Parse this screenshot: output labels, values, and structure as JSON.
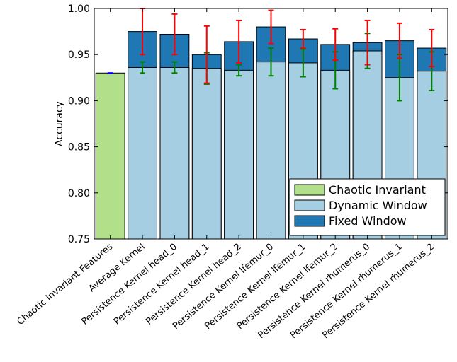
{
  "chart_data": {
    "type": "bar",
    "ylabel": "Accuracy",
    "ylim": [
      0.75,
      1.0
    ],
    "yticks": [
      "0.75",
      "0.80",
      "0.85",
      "0.90",
      "0.95",
      "1.00"
    ],
    "categories": [
      "Chaotic Invariant Features",
      "Average Kernel",
      "Persistence Kernel head_0",
      "Persistence Kernel head_1",
      "Persistence Kernel head_2",
      "Persistence Kernel lfemur_0",
      "Persistence Kernel lfemur_1",
      "Persistence Kernel lfemur_2",
      "Persistence Kernel rhumerus_0",
      "Persistence Kernel rhumerus_1",
      "Persistence Kernel rhumerus_2"
    ],
    "legend_position": "lower-right",
    "series": [
      {
        "name": "Chaotic Invariant",
        "color": "#b2df8a",
        "values": [
          0.93,
          null,
          null,
          null,
          null,
          null,
          null,
          null,
          null,
          null,
          null
        ],
        "error": [
          0.0,
          null,
          null,
          null,
          null,
          null,
          null,
          null,
          null,
          null,
          null
        ],
        "error_color": "#0000ff"
      },
      {
        "name": "Dynamic Window",
        "color": "#a6cee3",
        "values": [
          null,
          0.936,
          0.936,
          0.935,
          0.933,
          0.942,
          0.941,
          0.933,
          0.954,
          0.925,
          0.932
        ],
        "error": [
          null,
          0.006,
          0.006,
          0.017,
          0.006,
          0.015,
          0.015,
          0.02,
          0.019,
          0.025,
          0.021
        ],
        "error_color": "#008000"
      },
      {
        "name": "Fixed Window",
        "color": "#1f78b4",
        "values": [
          null,
          0.975,
          0.972,
          0.95,
          0.964,
          0.98,
          0.967,
          0.961,
          0.963,
          0.965,
          0.957
        ],
        "error": [
          null,
          0.025,
          0.022,
          0.031,
          0.023,
          0.018,
          0.01,
          0.017,
          0.024,
          0.019,
          0.02
        ],
        "error_color": "#ff0000"
      }
    ]
  }
}
